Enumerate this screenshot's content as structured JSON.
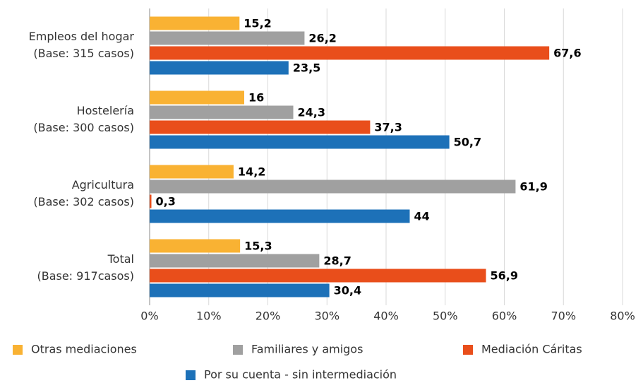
{
  "chart_data": {
    "type": "bar",
    "orientation": "horizontal",
    "categories": [
      [
        "Empleos del hogar",
        "(Base: 315 casos)"
      ],
      [
        "Hostelería",
        "(Base: 300 casos)"
      ],
      [
        "Agricultura",
        "(Base: 302 casos)"
      ],
      [
        "Total",
        "(Base: 917casos)"
      ]
    ],
    "series": [
      {
        "name": "Otras mediaciones",
        "color": "#f9b233",
        "values": [
          15.2,
          16,
          14.2,
          15.3
        ],
        "value_labels": [
          "15,2",
          "16",
          "14,2",
          "15,3"
        ]
      },
      {
        "name": "Familiares y amigos",
        "color": "#a0a0a0",
        "values": [
          26.2,
          24.3,
          61.9,
          28.7
        ],
        "value_labels": [
          "26,2",
          "24,3",
          "61,9",
          "28,7"
        ]
      },
      {
        "name": "Mediación Cáritas",
        "color": "#e94e1b",
        "values": [
          67.6,
          37.3,
          0.3,
          56.9
        ],
        "value_labels": [
          "67,6",
          "37,3",
          "0,3",
          "56,9"
        ]
      },
      {
        "name": "Por su cuenta - sin intermediación",
        "color": "#1d71b8",
        "values": [
          23.5,
          50.7,
          44,
          30.4
        ],
        "value_labels": [
          "23,5",
          "50,7",
          "44",
          "30,4"
        ]
      }
    ],
    "xlim": [
      0,
      80
    ],
    "xticks": [
      {
        "value": 0,
        "label": "0%"
      },
      {
        "value": 10,
        "label": "10%"
      },
      {
        "value": 20,
        "label": "20%"
      },
      {
        "value": 30,
        "label": "30%"
      },
      {
        "value": 40,
        "label": "40%"
      },
      {
        "value": 50,
        "label": "50%"
      },
      {
        "value": 60,
        "label": "60%"
      },
      {
        "value": 70,
        "label": "70%"
      },
      {
        "value": 80,
        "label": "80%"
      }
    ],
    "grid": true
  }
}
